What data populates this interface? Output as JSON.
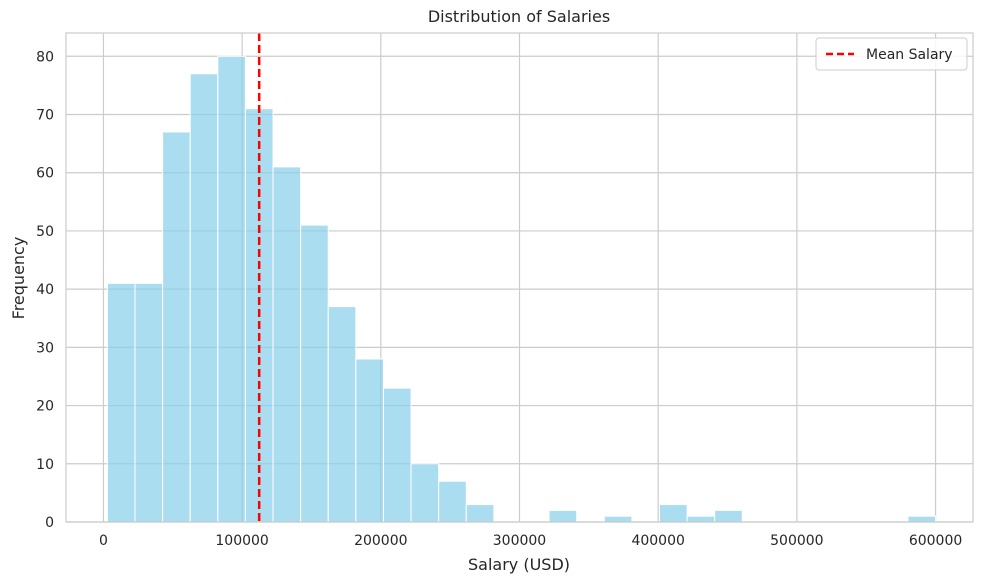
{
  "chart_data": {
    "type": "histogram",
    "title": "Distribution of Salaries",
    "xlabel": "Salary (USD)",
    "ylabel": "Frequency",
    "xlim": [
      -27000,
      627000
    ],
    "ylim": [
      0,
      84
    ],
    "xticks": [
      0,
      100000,
      200000,
      300000,
      400000,
      500000,
      600000
    ],
    "yticks": [
      0,
      10,
      20,
      30,
      40,
      50,
      60,
      70,
      80
    ],
    "grid": true,
    "legend_position": "top-right",
    "bin_start": 2859,
    "bin_width": 19905,
    "counts": [
      41,
      41,
      67,
      77,
      80,
      71,
      61,
      51,
      37,
      28,
      23,
      10,
      7,
      3,
      0,
      0,
      2,
      0,
      1,
      0,
      3,
      1,
      2,
      0,
      0,
      0,
      0,
      0,
      0,
      1
    ],
    "series": [
      {
        "name": "Mean Salary",
        "type": "vline",
        "value": 112298
      }
    ],
    "colors": {
      "bars": "#87ceeb",
      "bar_edge": "#ffffff",
      "mean_line": "#ff0000",
      "grid": "#cccccc",
      "spine": "#cccccc"
    }
  }
}
